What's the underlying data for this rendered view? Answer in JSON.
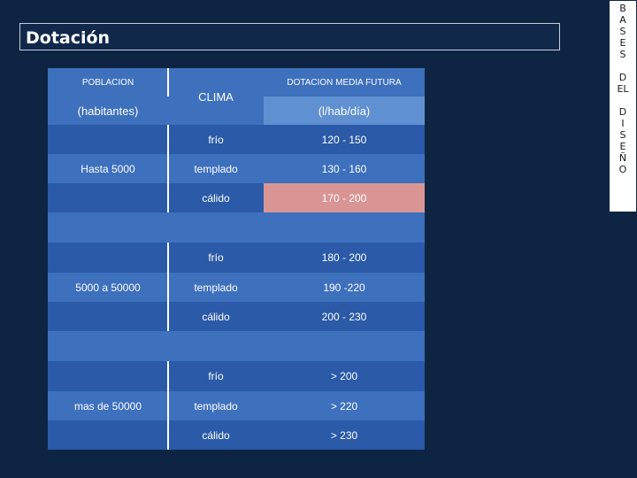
{
  "title": "Dotación",
  "side_label": {
    "word1": [
      "B",
      "A",
      "S",
      "E",
      "S"
    ],
    "word2": "D EL",
    "word3": [
      "D",
      "I",
      "S",
      "E",
      "Ñ",
      "O"
    ]
  },
  "table": {
    "header": {
      "poblacion": "POBLACION",
      "habitantes": "(habitantes)",
      "clima": "CLIMA",
      "dotacion": "DOTACION MEDIA FUTURA",
      "unidad": "(l/hab/día)"
    },
    "groups": [
      {
        "poblacion": "Hasta 5000",
        "rows": [
          {
            "clima": "frío",
            "valor": "120 - 150"
          },
          {
            "clima": "templado",
            "valor": "130 - 160"
          },
          {
            "clima": "cálido",
            "valor": "170 - 200"
          }
        ]
      },
      {
        "poblacion": "5000 a 50000",
        "rows": [
          {
            "clima": "frío",
            "valor": "180 - 200"
          },
          {
            "clima": "templado",
            "valor": "190 -220"
          },
          {
            "clima": "cálido",
            "valor": "200 - 230"
          }
        ]
      },
      {
        "poblacion": "mas de 50000",
        "rows": [
          {
            "clima": "frío",
            "valor": "> 200"
          },
          {
            "clima": "templado",
            "valor": "> 220"
          },
          {
            "clima": "cálido",
            "valor": "> 230"
          }
        ]
      }
    ]
  },
  "colors": {
    "background": "#0e2443",
    "highlight": "#d99593"
  }
}
